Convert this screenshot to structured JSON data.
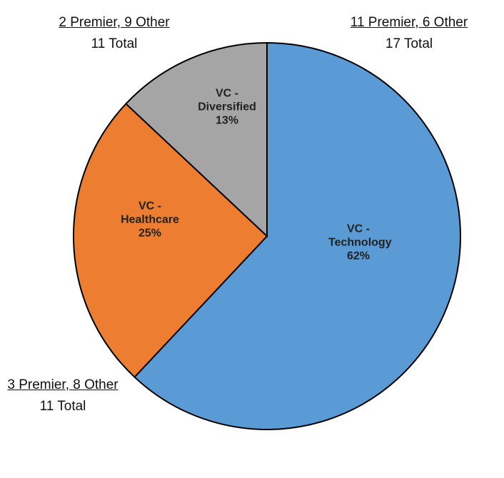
{
  "chart_data": {
    "type": "pie",
    "categories": [
      "VC - Technology",
      "VC - Healthcare",
      "VC - Diversified"
    ],
    "values": [
      62,
      25,
      13
    ],
    "value_labels": [
      "62%",
      "25%",
      "13%"
    ],
    "colors": [
      "#5b9bd5",
      "#ed7d31",
      "#a5a5a5"
    ],
    "annotations": [
      {
        "detail": "11 Premier, 6 Other",
        "total": "17 Total"
      },
      {
        "detail": "3 Premier, 8 Other",
        "total": "11 Total"
      },
      {
        "detail": "2 Premier, 9 Other",
        "total": "11 Total"
      }
    ]
  }
}
